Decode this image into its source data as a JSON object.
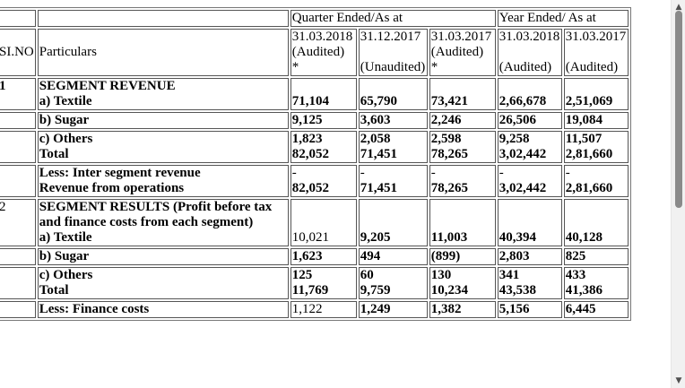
{
  "header": {
    "quarter_group": "Quarter Ended/As at",
    "year_group": "Year Ended/ As at",
    "sl_no": "SI.NO",
    "particulars": "Particulars",
    "q1_date": "31.03.2018",
    "q1_status": "(Audited)",
    "q1_mark": "*",
    "q2_date": "31.12.2017",
    "q2_status": "(Unaudited)",
    "q3_date": "31.03.2017",
    "q3_status": "(Audited)",
    "q3_mark": "*",
    "y1_date": "31.03.2018",
    "y1_status": "(Audited)",
    "y2_date": "31.03.2017",
    "y2_status": "(Audited)"
  },
  "rows": {
    "seg_rev_no": "1",
    "seg_rev_title": "SEGMENT REVENUE",
    "textile_label": "a) Textile",
    "textile": [
      "71,104",
      "65,790",
      "73,421",
      "2,66,678",
      "2,51,069"
    ],
    "sugar_label": "b) Sugar",
    "sugar": [
      "9,125",
      "3,603",
      "2,246",
      "26,506",
      "19,084"
    ],
    "others_label": "c) Others",
    "others": [
      "1,823",
      "2,058",
      "2,598",
      "9,258",
      "11,507"
    ],
    "total_label": "Total",
    "total": [
      "82,052",
      "71,451",
      "78,265",
      "3,02,442",
      "2,81,660"
    ],
    "inter_label": "Less: Inter segment revenue",
    "inter": [
      "-",
      "-",
      "-",
      "-",
      "-"
    ],
    "revops_label": "Revenue from operations",
    "revops": [
      "82,052",
      "71,451",
      "78,265",
      "3,02,442",
      "2,81,660"
    ],
    "seg_res_no": "2",
    "seg_res_title": "SEGMENT RESULTS (Profit before tax and finance costs from each segment)",
    "res_textile_label": "a) Textile",
    "res_textile": [
      "10,021",
      "9,205",
      "11,003",
      "40,394",
      "40,128"
    ],
    "res_sugar_label": "b) Sugar",
    "res_sugar": [
      "1,623",
      "494",
      "(899)",
      "2,803",
      "825"
    ],
    "res_others_label": "c) Others",
    "res_others": [
      "125",
      "60",
      "130",
      "341",
      "433"
    ],
    "res_total_label": "Total",
    "res_total": [
      "11,769",
      "9,759",
      "10,234",
      "43,538",
      "41,386"
    ],
    "finance_label": "Less: Finance costs",
    "finance": [
      "1,122",
      "1,249",
      "1,382",
      "5,156",
      "6,445"
    ]
  },
  "scrollbar": {
    "up_icon": "▲",
    "down_icon": "▼"
  }
}
